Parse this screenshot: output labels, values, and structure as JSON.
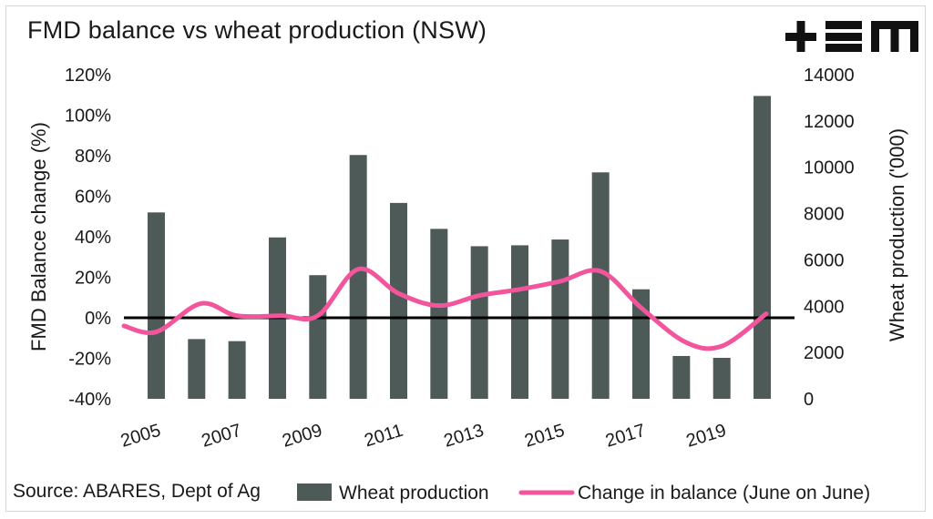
{
  "title": "FMD balance vs wheat production (NSW)",
  "logo_text": "+EM",
  "source": "Source: ABARES, Dept of Ag",
  "colors": {
    "bar": "#4d5a58",
    "line": "#f2559b",
    "zero": "#000000"
  },
  "chart_data": {
    "type": "bar+line",
    "title": "FMD balance vs wheat production (NSW)",
    "ylabel_left": "FMD Balance change (%)",
    "ylabel_right": "Wheat production ('000)",
    "ylim_left": [
      -40,
      120
    ],
    "ylim_right": [
      0,
      14000
    ],
    "yticks_left": [
      "120%",
      "100%",
      "80%",
      "60%",
      "40%",
      "20%",
      "0%",
      "-20%",
      "-40%"
    ],
    "yticks_left_values": [
      120,
      100,
      80,
      60,
      40,
      20,
      0,
      -20,
      -40
    ],
    "yticks_right": [
      "14000",
      "12000",
      "10000",
      "8000",
      "6000",
      "4000",
      "2000",
      "0"
    ],
    "yticks_right_values": [
      14000,
      12000,
      10000,
      8000,
      6000,
      4000,
      2000,
      0
    ],
    "categories": [
      2005,
      2006,
      2007,
      2008,
      2009,
      2010,
      2011,
      2012,
      2013,
      2014,
      2015,
      2016,
      2017,
      2018,
      2019,
      2020
    ],
    "xtick_labels": [
      "2005",
      "2007",
      "2009",
      "2011",
      "2013",
      "2015",
      "2017",
      "2019"
    ],
    "xtick_years": [
      2005,
      2007,
      2009,
      2011,
      2013,
      2015,
      2017,
      2019
    ],
    "series": [
      {
        "name": "Wheat production",
        "type": "bar",
        "axis": "right",
        "values": [
          8050,
          2580,
          2490,
          6970,
          5340,
          10530,
          8460,
          7340,
          6590,
          6630,
          6880,
          9780,
          4730,
          1850,
          1770,
          13080
        ]
      },
      {
        "name": "Change in balance (June on June)",
        "type": "line",
        "axis": "left",
        "values": [
          -4,
          -7,
          7,
          1,
          1,
          1,
          24,
          12,
          6,
          11,
          14,
          18,
          23,
          5,
          -12,
          -14,
          2
        ],
        "x": [
          2004.2,
          2005,
          2006.1,
          2007.0,
          2008.1,
          2009.0,
          2010.0,
          2011.0,
          2012.0,
          2013.0,
          2014.0,
          2015.0,
          2016.0,
          2017.0,
          2018.1,
          2019.0,
          2020.1
        ]
      }
    ],
    "zero_line": true,
    "legend": {
      "position": "bottom",
      "items": [
        "Wheat production",
        "Change in balance (June on June)"
      ]
    }
  }
}
